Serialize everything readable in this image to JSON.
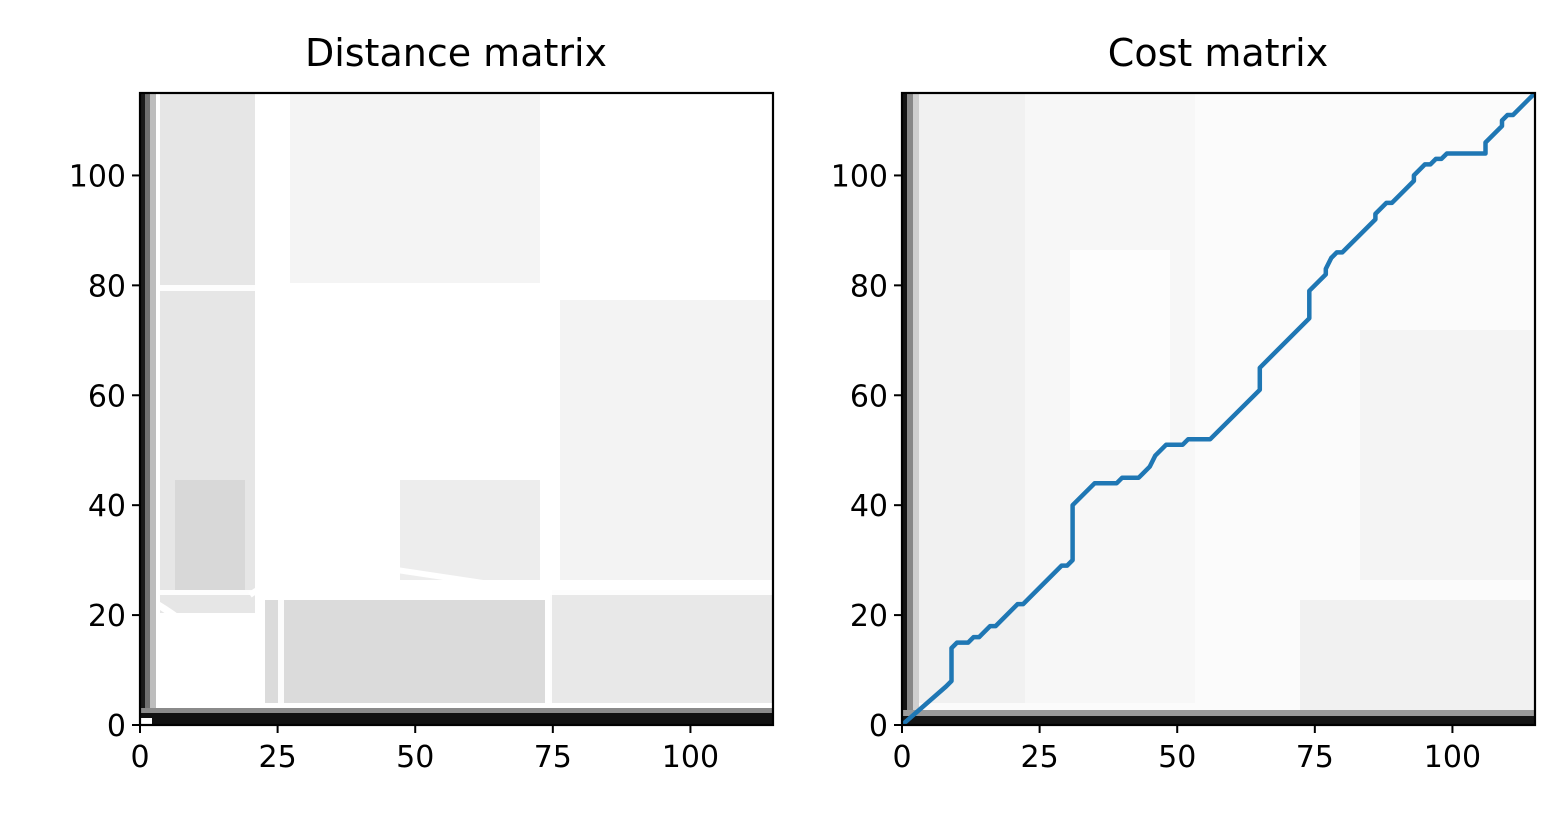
{
  "chart_data": [
    {
      "type": "heatmap",
      "title": "Distance matrix",
      "xlim": [
        0,
        115
      ],
      "ylim": [
        0,
        115
      ],
      "xticks": [
        0,
        25,
        50,
        75,
        100
      ],
      "yticks": [
        0,
        20,
        40,
        60,
        80,
        100
      ],
      "colormap": "gray",
      "grid": false
    },
    {
      "type": "heatmap",
      "title": "Cost matrix",
      "xlim": [
        0,
        115
      ],
      "ylim": [
        0,
        115
      ],
      "xticks": [
        0,
        25,
        50,
        75,
        100
      ],
      "yticks": [
        0,
        20,
        40,
        60,
        80,
        100
      ],
      "colormap": "gray",
      "grid": false,
      "path_color": "#1f77b4",
      "path": [
        [
          0,
          0
        ],
        [
          8,
          7
        ],
        [
          9,
          8
        ],
        [
          9,
          14
        ],
        [
          10,
          15
        ],
        [
          12,
          15
        ],
        [
          13,
          16
        ],
        [
          14,
          16
        ],
        [
          16,
          18
        ],
        [
          17,
          18
        ],
        [
          21,
          22
        ],
        [
          22,
          22
        ],
        [
          29,
          29
        ],
        [
          30,
          29
        ],
        [
          31,
          30
        ],
        [
          31,
          40
        ],
        [
          35,
          44
        ],
        [
          39,
          44
        ],
        [
          40,
          45
        ],
        [
          43,
          45
        ],
        [
          45,
          47
        ],
        [
          46,
          49
        ],
        [
          48,
          51
        ],
        [
          51,
          51
        ],
        [
          52,
          52
        ],
        [
          56,
          52
        ],
        [
          65,
          61
        ],
        [
          65,
          65
        ],
        [
          74,
          74
        ],
        [
          74,
          79
        ],
        [
          77,
          82
        ],
        [
          77,
          83
        ],
        [
          78,
          85
        ],
        [
          79,
          86
        ],
        [
          80,
          86
        ],
        [
          86,
          92
        ],
        [
          86,
          93
        ],
        [
          88,
          95
        ],
        [
          89,
          95
        ],
        [
          93,
          99
        ],
        [
          93,
          100
        ],
        [
          95,
          102
        ],
        [
          96,
          102
        ],
        [
          97,
          103
        ],
        [
          98,
          103
        ],
        [
          99,
          104
        ],
        [
          106,
          104
        ],
        [
          106,
          106
        ],
        [
          109,
          109
        ],
        [
          109,
          110
        ],
        [
          110,
          111
        ],
        [
          111,
          111
        ],
        [
          115,
          115
        ]
      ]
    }
  ]
}
